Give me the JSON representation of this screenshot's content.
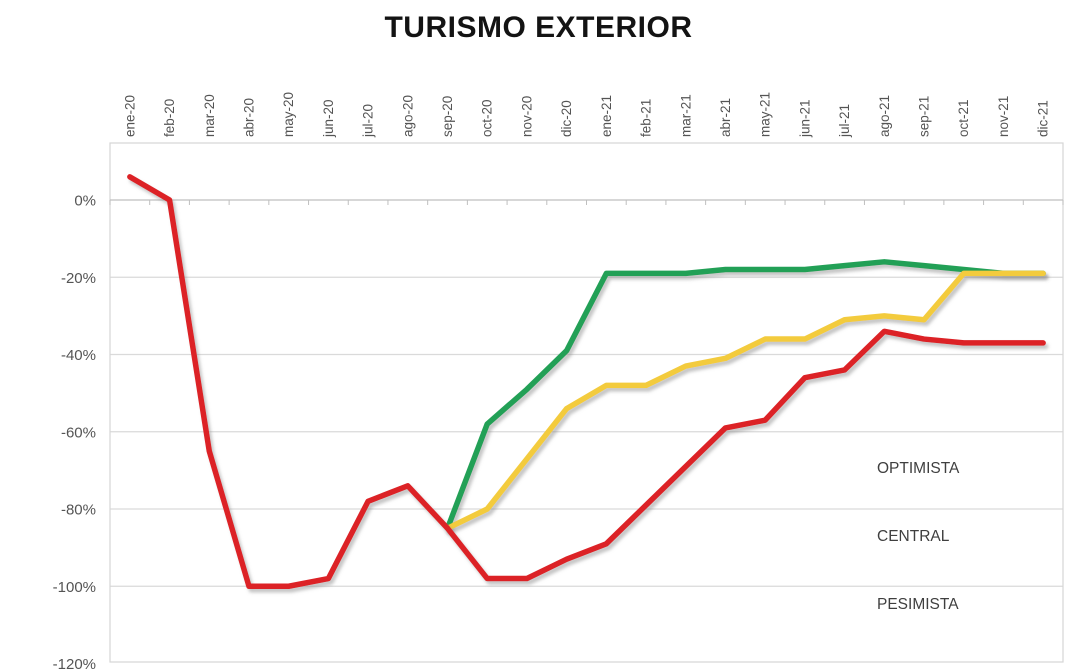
{
  "title": "TURISMO EXTERIOR",
  "colors": {
    "optimista": "#23A057",
    "central": "#F3CB3E",
    "pesimista": "#DC2127",
    "gridline": "#DADADA",
    "axis_line": "#BFBFBF",
    "plot_border": "#D6D6D6",
    "axis_label": "#545454",
    "legend_label": "#3F3F3F",
    "title_color": "#131313"
  },
  "chart_data": {
    "type": "line",
    "title": "TURISMO EXTERIOR",
    "xlabel": "",
    "ylabel": "",
    "ylim": [
      -120,
      20
    ],
    "ytick_step": 20,
    "grid": "horizontal-only",
    "x_label_rotation": -90,
    "legend_position": "inside-right",
    "yticks": [
      {
        "value": 0,
        "label": "0%"
      },
      {
        "value": -20,
        "label": "-20%"
      },
      {
        "value": -40,
        "label": "-40%"
      },
      {
        "value": -60,
        "label": "-60%"
      },
      {
        "value": -80,
        "label": "-80%"
      },
      {
        "value": -100,
        "label": "-100%"
      },
      {
        "value": -120,
        "label": "-120%"
      }
    ],
    "categories": [
      "ene-20",
      "feb-20",
      "mar-20",
      "abr-20",
      "may-20",
      "jun-20",
      "jul-20",
      "ago-20",
      "sep-20",
      "oct-20",
      "nov-20",
      "dic-20",
      "ene-21",
      "feb-21",
      "mar-21",
      "abr-21",
      "may-21",
      "jun-21",
      "jul-21",
      "ago-21",
      "sep-21",
      "oct-21",
      "nov-21",
      "dic-21"
    ],
    "series": [
      {
        "name": "OPTIMISTA",
        "color": "#23A057",
        "values": [
          null,
          null,
          null,
          null,
          null,
          null,
          null,
          null,
          -85,
          -58,
          -49,
          -39,
          -19,
          -19,
          -19,
          -18,
          -18,
          -18,
          -17,
          -16,
          -17,
          -18,
          -19,
          -19
        ]
      },
      {
        "name": "CENTRAL",
        "color": "#F3CB3E",
        "values": [
          null,
          null,
          null,
          null,
          null,
          null,
          null,
          null,
          -85,
          -80,
          -67,
          -54,
          -48,
          -48,
          -43,
          -41,
          -36,
          -36,
          -31,
          -30,
          -31,
          -19,
          -19,
          -19
        ]
      },
      {
        "name": "PESIMISTA",
        "color": "#DC2127",
        "values": [
          6,
          0,
          -65,
          -100,
          -100,
          -98,
          -78,
          -74,
          -85,
          -98,
          -98,
          -93,
          -89,
          -79,
          -69,
          -59,
          -57,
          -46,
          -44,
          -34,
          -36,
          -37,
          -37,
          -37
        ]
      }
    ]
  }
}
